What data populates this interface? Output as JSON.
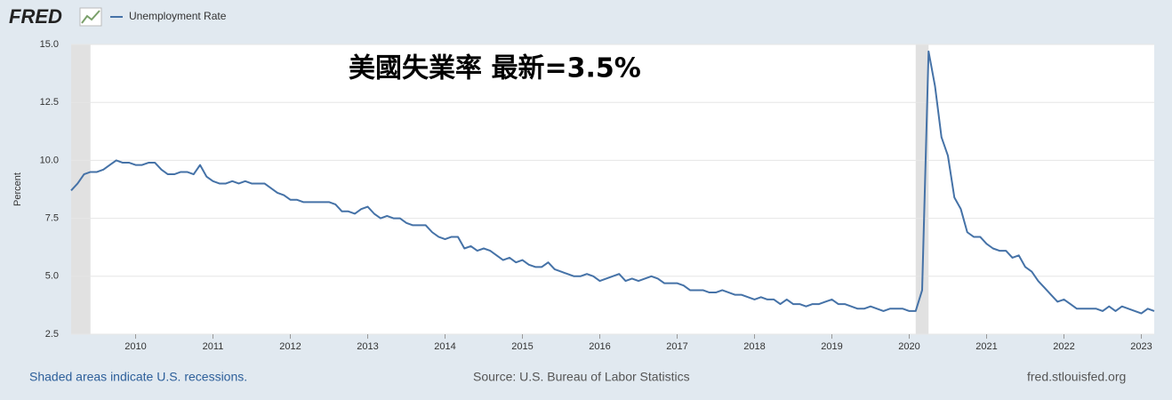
{
  "chart_data": {
    "type": "line",
    "logo": "FRED",
    "annotation": "美國失業率  最新=3.5%",
    "y_label": "Percent",
    "note": "Shaded areas indicate U.S. recessions.",
    "source": "Source: U.S. Bureau of Labor Statistics",
    "credit": "fred.stlouisfed.org",
    "categories": [
      null,
      null,
      null,
      null,
      null,
      null,
      null,
      null,
      null,
      null,
      "2010",
      null,
      null,
      null,
      null,
      null,
      null,
      null,
      null,
      null,
      null,
      null,
      "2011",
      null,
      null,
      null,
      null,
      null,
      null,
      null,
      null,
      null,
      null,
      null,
      "2012",
      null,
      null,
      null,
      null,
      null,
      null,
      null,
      null,
      null,
      null,
      null,
      "2013",
      null,
      null,
      null,
      null,
      null,
      null,
      null,
      null,
      null,
      null,
      null,
      "2014",
      null,
      null,
      null,
      null,
      null,
      null,
      null,
      null,
      null,
      null,
      null,
      "2015",
      null,
      null,
      null,
      null,
      null,
      null,
      null,
      null,
      null,
      null,
      null,
      "2016",
      null,
      null,
      null,
      null,
      null,
      null,
      null,
      null,
      null,
      null,
      null,
      "2017",
      null,
      null,
      null,
      null,
      null,
      null,
      null,
      null,
      null,
      null,
      null,
      "2018",
      null,
      null,
      null,
      null,
      null,
      null,
      null,
      null,
      null,
      null,
      null,
      "2019",
      null,
      null,
      null,
      null,
      null,
      null,
      null,
      null,
      null,
      null,
      null,
      "2020",
      null,
      null,
      null,
      null,
      null,
      null,
      null,
      null,
      null,
      null,
      null,
      "2021",
      null,
      null,
      null,
      null,
      null,
      null,
      null,
      null,
      null,
      null,
      null,
      "2022",
      null,
      null,
      null,
      null,
      null,
      null,
      null,
      null,
      null,
      null,
      null,
      "2023",
      null,
      null
    ],
    "series": [
      {
        "name": "Unemployment Rate",
        "color": "#4572a7",
        "values": [
          8.7,
          9.0,
          9.4,
          9.5,
          9.5,
          9.6,
          9.8,
          10.0,
          9.9,
          9.9,
          9.8,
          9.8,
          9.9,
          9.9,
          9.6,
          9.4,
          9.4,
          9.5,
          9.5,
          9.4,
          9.8,
          9.3,
          9.1,
          9.0,
          9.0,
          9.1,
          9.0,
          9.1,
          9.0,
          9.0,
          9.0,
          8.8,
          8.6,
          8.5,
          8.3,
          8.3,
          8.2,
          8.2,
          8.2,
          8.2,
          8.2,
          8.1,
          7.8,
          7.8,
          7.7,
          7.9,
          8.0,
          7.7,
          7.5,
          7.6,
          7.5,
          7.5,
          7.3,
          7.2,
          7.2,
          7.2,
          6.9,
          6.7,
          6.6,
          6.7,
          6.7,
          6.2,
          6.3,
          6.1,
          6.2,
          6.1,
          5.9,
          5.7,
          5.8,
          5.6,
          5.7,
          5.5,
          5.4,
          5.4,
          5.6,
          5.3,
          5.2,
          5.1,
          5.0,
          5.0,
          5.1,
          5.0,
          4.8,
          4.9,
          5.0,
          5.1,
          4.8,
          4.9,
          4.8,
          4.9,
          5.0,
          4.9,
          4.7,
          4.7,
          4.7,
          4.6,
          4.4,
          4.4,
          4.4,
          4.3,
          4.3,
          4.4,
          4.3,
          4.2,
          4.2,
          4.1,
          4.0,
          4.1,
          4.0,
          4.0,
          3.8,
          4.0,
          3.8,
          3.8,
          3.7,
          3.8,
          3.8,
          3.9,
          4.0,
          3.8,
          3.8,
          3.7,
          3.6,
          3.6,
          3.7,
          3.6,
          3.5,
          3.6,
          3.6,
          3.6,
          3.5,
          3.5,
          4.4,
          14.7,
          13.2,
          11.0,
          10.2,
          8.4,
          7.9,
          6.9,
          6.7,
          6.7,
          6.4,
          6.2,
          6.1,
          6.1,
          5.8,
          5.9,
          5.4,
          5.2,
          4.8,
          4.5,
          4.2,
          3.9,
          4.0,
          3.8,
          3.6,
          3.6,
          3.6,
          3.6,
          3.5,
          3.7,
          3.5,
          3.7,
          3.6,
          3.5,
          3.4,
          3.6,
          3.5
        ]
      }
    ],
    "recessions": [
      {
        "start": 0,
        "end": 3
      },
      {
        "start": 131,
        "end": 133
      }
    ],
    "ylim": [
      2.5,
      15
    ],
    "yticks": [
      2.5,
      {
        "value": 5,
        "label": "5.0"
      },
      {
        "value": 7.5,
        "label": "7.5"
      },
      {
        "value": 10,
        "label": "10.0"
      },
      {
        "value": 12.5,
        "label": "12.5"
      },
      {
        "value": 15,
        "label": "15.0"
      }
    ],
    "grid": true
  }
}
